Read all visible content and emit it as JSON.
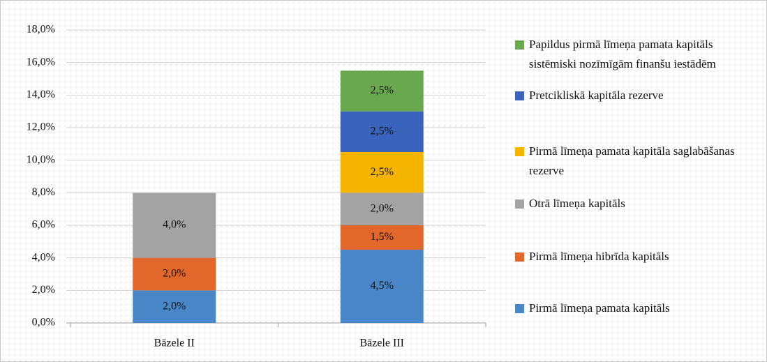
{
  "chart_data": {
    "type": "stacked_bar",
    "categories": [
      "Bāzele II",
      "Bāzele III"
    ],
    "series": [
      {
        "name": "Pirmā līmeņa pamata kapitāls",
        "color": "#4a87c8",
        "values": [
          2.0,
          4.5
        ],
        "value_labels": [
          "2,0%",
          "4,5%"
        ]
      },
      {
        "name": "Pirmā līmeņa hibrīda kapitāls",
        "color": "#e2672a",
        "values": [
          2.0,
          1.5
        ],
        "value_labels": [
          "2,0%",
          "1,5%"
        ]
      },
      {
        "name": "Otrā līmeņa kapitāls",
        "color": "#a3a3a3",
        "values": [
          4.0,
          2.0
        ],
        "value_labels": [
          "4,0%",
          "2,0%"
        ]
      },
      {
        "name": "Pirmā līmeņa pamata kapitāla saglabāšanas rezerve",
        "color": "#f4b400",
        "values": [
          null,
          2.5
        ],
        "value_labels": [
          null,
          "2,5%"
        ]
      },
      {
        "name": "Pretcikliskā kapitāla rezerve",
        "color": "#3a64bb",
        "values": [
          null,
          2.5
        ],
        "value_labels": [
          null,
          "2,5%"
        ]
      },
      {
        "name": "Papildus pirmā līmeņa pamata kapitāls sistēmiski nozīmīgām finanšu iestādēm",
        "color": "#6aa84f",
        "values": [
          null,
          2.5
        ],
        "value_labels": [
          null,
          "2,5%"
        ]
      }
    ],
    "ylim": [
      0,
      18
    ],
    "yticks": [
      {
        "value": 0,
        "label": "0,0%"
      },
      {
        "value": 2,
        "label": "2,0%"
      },
      {
        "value": 4,
        "label": "4,0%"
      },
      {
        "value": 6,
        "label": "6,0%"
      },
      {
        "value": 8,
        "label": "8,0%"
      },
      {
        "value": 10,
        "label": "10,0%"
      },
      {
        "value": 12,
        "label": "12,0%"
      },
      {
        "value": 14,
        "label": "14,0%"
      },
      {
        "value": 16,
        "label": "16,0%"
      },
      {
        "value": 18,
        "label": "18,0%"
      }
    ],
    "grid": true,
    "legend": "right"
  }
}
